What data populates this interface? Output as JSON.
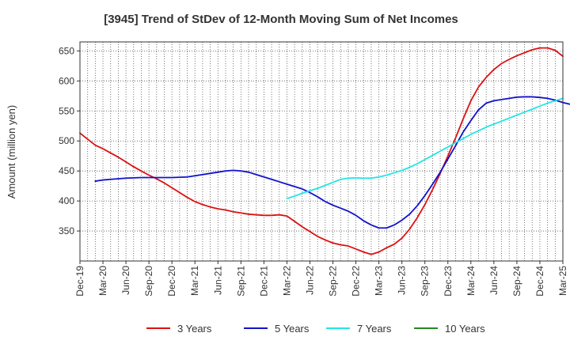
{
  "chart_data": {
    "type": "line",
    "title": "[3945]  Trend of StDev of 12-Month Moving Sum of Net Incomes",
    "ylabel": "Amount (million yen)",
    "xlabel": "",
    "ylim": [
      300,
      665
    ],
    "yticks": [
      350,
      400,
      450,
      500,
      550,
      600,
      650
    ],
    "x_ticks": [
      "Dec-19",
      "Mar-20",
      "Jun-20",
      "Sep-20",
      "Dec-20",
      "Mar-21",
      "Jun-21",
      "Sep-21",
      "Dec-21",
      "Mar-22",
      "Jun-22",
      "Sep-22",
      "Dec-22",
      "Mar-23",
      "Jun-23",
      "Sep-23",
      "Dec-23",
      "Mar-24",
      "Jun-24",
      "Sep-24",
      "Dec-24",
      "Mar-25"
    ],
    "grid": true,
    "legend_position": "bottom",
    "series": [
      {
        "name": "3 Years",
        "color": "#dd1111",
        "points": [
          [
            0,
            513
          ],
          [
            1,
            503
          ],
          [
            2,
            493
          ],
          [
            3,
            487
          ],
          [
            4,
            480
          ],
          [
            5,
            473
          ],
          [
            6,
            465
          ],
          [
            7,
            457
          ],
          [
            8,
            450
          ],
          [
            9,
            443
          ],
          [
            10,
            437
          ],
          [
            11,
            430
          ],
          [
            12,
            422
          ],
          [
            13,
            414
          ],
          [
            14,
            406
          ],
          [
            15,
            399
          ],
          [
            16,
            394
          ],
          [
            17,
            390
          ],
          [
            18,
            387
          ],
          [
            19,
            385
          ],
          [
            20,
            382
          ],
          [
            21,
            380
          ],
          [
            22,
            378
          ],
          [
            23,
            377
          ],
          [
            24,
            376
          ],
          [
            25,
            376
          ],
          [
            26,
            377
          ],
          [
            27,
            375
          ],
          [
            28,
            366
          ],
          [
            29,
            357
          ],
          [
            30,
            349
          ],
          [
            31,
            341
          ],
          [
            32,
            335
          ],
          [
            33,
            330
          ],
          [
            34,
            327
          ],
          [
            35,
            325
          ],
          [
            36,
            320
          ],
          [
            37,
            315
          ],
          [
            38,
            311
          ],
          [
            39,
            315
          ],
          [
            40,
            322
          ],
          [
            41,
            328
          ],
          [
            42,
            338
          ],
          [
            43,
            353
          ],
          [
            44,
            372
          ],
          [
            45,
            394
          ],
          [
            46,
            419
          ],
          [
            47,
            446
          ],
          [
            48,
            475
          ],
          [
            49,
            505
          ],
          [
            50,
            537
          ],
          [
            51,
            567
          ],
          [
            52,
            590
          ],
          [
            53,
            606
          ],
          [
            54,
            619
          ],
          [
            55,
            629
          ],
          [
            56,
            636
          ],
          [
            57,
            642
          ],
          [
            58,
            647
          ],
          [
            59,
            652
          ],
          [
            60,
            655
          ],
          [
            61,
            655
          ],
          [
            62,
            651
          ],
          [
            63,
            641
          ]
        ]
      },
      {
        "name": "5 Years",
        "color": "#1111cc",
        "points": [
          [
            2,
            433
          ],
          [
            3,
            435
          ],
          [
            4,
            436
          ],
          [
            5,
            437
          ],
          [
            6,
            438
          ],
          [
            7,
            438.5
          ],
          [
            8,
            439
          ],
          [
            9,
            439
          ],
          [
            10,
            439
          ],
          [
            11,
            439
          ],
          [
            12,
            439
          ],
          [
            13,
            439.5
          ],
          [
            14,
            440
          ],
          [
            15,
            442
          ],
          [
            16,
            444
          ],
          [
            17,
            446
          ],
          [
            18,
            448
          ],
          [
            19,
            450
          ],
          [
            20,
            451
          ],
          [
            21,
            450
          ],
          [
            22,
            448
          ],
          [
            23,
            444
          ],
          [
            24,
            440
          ],
          [
            25,
            436
          ],
          [
            26,
            432
          ],
          [
            27,
            428
          ],
          [
            28,
            424
          ],
          [
            29,
            420
          ],
          [
            30,
            414
          ],
          [
            31,
            407
          ],
          [
            32,
            399
          ],
          [
            33,
            393
          ],
          [
            34,
            388
          ],
          [
            35,
            383
          ],
          [
            36,
            376
          ],
          [
            37,
            367
          ],
          [
            38,
            360
          ],
          [
            39,
            355
          ],
          [
            40,
            355
          ],
          [
            41,
            360
          ],
          [
            42,
            368
          ],
          [
            43,
            378
          ],
          [
            44,
            392
          ],
          [
            45,
            409
          ],
          [
            46,
            428
          ],
          [
            47,
            448
          ],
          [
            48,
            470
          ],
          [
            49,
            492
          ],
          [
            50,
            515
          ],
          [
            51,
            534
          ],
          [
            52,
            552
          ],
          [
            53,
            563
          ],
          [
            54,
            567
          ],
          [
            55,
            569
          ],
          [
            56,
            571
          ],
          [
            57,
            573
          ],
          [
            58,
            573.5
          ],
          [
            59,
            573.5
          ],
          [
            60,
            572.5
          ],
          [
            61,
            571
          ],
          [
            62,
            568
          ],
          [
            63,
            564
          ],
          [
            64,
            561
          ]
        ]
      },
      {
        "name": "7 Years",
        "color": "#22e5e5",
        "points": [
          [
            27,
            404
          ],
          [
            28,
            408
          ],
          [
            29,
            413
          ],
          [
            30,
            417
          ],
          [
            31,
            421
          ],
          [
            32,
            426
          ],
          [
            33,
            431
          ],
          [
            34,
            436
          ],
          [
            35,
            438
          ],
          [
            36,
            438.5
          ],
          [
            37,
            438
          ],
          [
            38,
            438
          ],
          [
            39,
            440
          ],
          [
            40,
            443
          ],
          [
            41,
            447
          ],
          [
            42,
            451
          ],
          [
            43,
            456
          ],
          [
            44,
            462
          ],
          [
            45,
            469
          ],
          [
            46,
            476
          ],
          [
            47,
            483
          ],
          [
            48,
            490
          ],
          [
            49,
            497
          ],
          [
            50,
            504
          ],
          [
            51,
            511
          ],
          [
            52,
            517
          ],
          [
            53,
            523
          ],
          [
            54,
            528
          ],
          [
            55,
            533
          ],
          [
            56,
            538
          ],
          [
            57,
            543
          ],
          [
            58,
            548
          ],
          [
            59,
            553
          ],
          [
            60,
            558
          ],
          [
            61,
            563
          ],
          [
            62,
            567
          ],
          [
            63,
            571
          ]
        ]
      },
      {
        "name": "10 Years",
        "color": "#228822",
        "points": []
      }
    ]
  }
}
